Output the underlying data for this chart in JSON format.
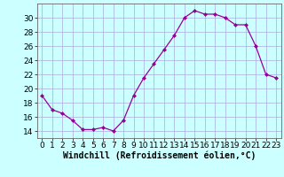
{
  "x": [
    0,
    1,
    2,
    3,
    4,
    5,
    6,
    7,
    8,
    9,
    10,
    11,
    12,
    13,
    14,
    15,
    16,
    17,
    18,
    19,
    20,
    21,
    22,
    23
  ],
  "y": [
    19,
    17,
    16.5,
    15.5,
    14.2,
    14.2,
    14.5,
    14.0,
    15.5,
    19.0,
    21.5,
    23.5,
    25.5,
    27.5,
    30.0,
    31.0,
    30.5,
    30.5,
    30.0,
    29.0,
    29.0,
    26.0,
    22.0,
    21.5
  ],
  "line_color": "#990099",
  "marker": "D",
  "marker_size": 2,
  "bg_color": "#ccffff",
  "grid_color": "#aaaadd",
  "xlabel": "Windchill (Refroidissement éolien,°C)",
  "xlim": [
    -0.5,
    23.5
  ],
  "ylim": [
    13,
    32
  ],
  "yticks": [
    14,
    16,
    18,
    20,
    22,
    24,
    26,
    28,
    30
  ],
  "xticks": [
    0,
    1,
    2,
    3,
    4,
    5,
    6,
    7,
    8,
    9,
    10,
    11,
    12,
    13,
    14,
    15,
    16,
    17,
    18,
    19,
    20,
    21,
    22,
    23
  ],
  "label_fontsize": 7,
  "tick_fontsize": 6.5
}
